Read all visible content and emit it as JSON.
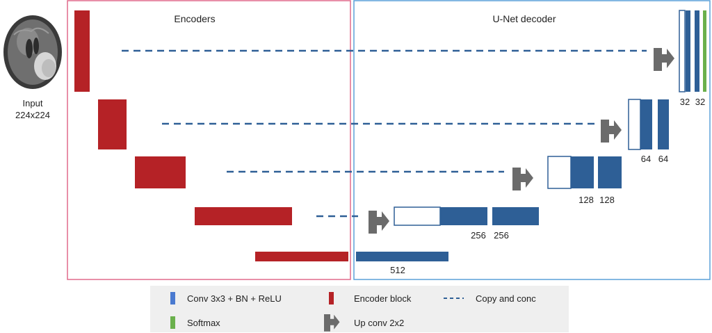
{
  "input": {
    "label_line1": "Input",
    "label_line2": "224x224"
  },
  "encoders_title": "Encoders",
  "decoder_title": "U-Net decoder",
  "channel_labels": {
    "bottleneck": "512",
    "level3_a": "256",
    "level3_b": "256",
    "level2_a": "128",
    "level2_b": "128",
    "level1_a": "64",
    "level1_b": "64",
    "level0_a": "32",
    "level0_b": "32"
  },
  "legend": {
    "conv": "Conv 3x3 + BN + ReLU",
    "encoder": "Encoder block",
    "copy": "Copy and conc",
    "softmax": "Softmax",
    "upconv": "Up conv 2x2"
  },
  "colors": {
    "encoder_red": "#b52226",
    "decoder_blue": "#2e5f96",
    "softmax_green": "#6ab04c",
    "encoder_frame": "#e06a8c",
    "decoder_frame": "#5aa0d8",
    "upconv_gray": "#6b6b6b",
    "legend_bg": "#efefef"
  }
}
